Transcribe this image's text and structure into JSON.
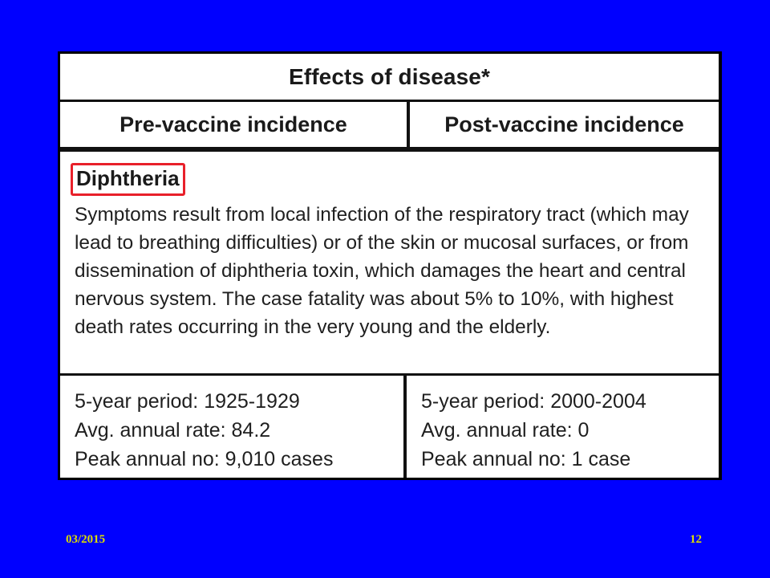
{
  "table": {
    "title": "Effects of disease*",
    "headers": {
      "pre": "Pre-vaccine incidence",
      "post": "Post-vaccine incidence"
    },
    "disease": {
      "name": "Diphtheria",
      "description": "Symptoms result from local infection of the respiratory tract (which may lead to breathing difficulties) or of the skin or mucosal surfaces, or from dissemination of diphtheria toxin, which damages the heart and central nervous system. The case fatality was about 5% to 10%, with highest death rates occurring in the very young and the elderly."
    },
    "pre": {
      "period": "5-year period: 1925-1929",
      "avg_rate": "Avg. annual rate: 84.2",
      "peak": "Peak annual no: 9,010 cases"
    },
    "post": {
      "period": "5-year period: 2000-2004",
      "avg_rate": "Avg. annual rate: 0",
      "peak": "Peak annual no: 1 case"
    }
  },
  "footer": {
    "date": "03/2015",
    "page_number": "12"
  },
  "colors": {
    "background": "#0000ff",
    "highlight_box": "#e8202a",
    "footer_text": "#dcdc00"
  }
}
